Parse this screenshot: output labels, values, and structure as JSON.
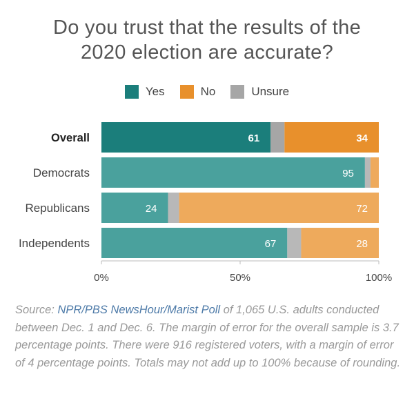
{
  "chart_data": {
    "type": "bar",
    "orientation": "horizontal",
    "stacked": true,
    "title": "Do you trust that the results of the 2020 election are accurate?",
    "title_lines": [
      "Do you trust that the results of the",
      "2020 election are accurate?"
    ],
    "categories": [
      "Overall",
      "Democrats",
      "Republicans",
      "Independents"
    ],
    "series": [
      {
        "name": "Yes",
        "values": [
          61,
          95,
          24,
          67
        ],
        "color": "#1b7e7b"
      },
      {
        "name": "Unsure",
        "values": [
          5,
          2,
          4,
          5
        ],
        "color": "#a6a6a6"
      },
      {
        "name": "No",
        "values": [
          34,
          3,
          72,
          28
        ],
        "color": "#e8902c"
      }
    ],
    "data_labels": {
      "Yes": [
        "61",
        "95",
        "24",
        "67"
      ],
      "No": [
        "34",
        "",
        "72",
        "28"
      ]
    },
    "highlight_category": "Overall",
    "xlim": [
      0,
      100
    ],
    "xticks": [
      0,
      50,
      100
    ],
    "xtick_labels": [
      "0%",
      "50%",
      "100%"
    ],
    "legend": [
      "Yes",
      "No",
      "Unsure"
    ],
    "legend_position": "top-center"
  },
  "colors": {
    "yes": "#1b7e7b",
    "no": "#e8902c",
    "unsure": "#a6a6a6",
    "yes_muted": "#4aa19d",
    "no_muted": "#eeaa5c",
    "unsure_muted": "#b8b8b8"
  },
  "source": {
    "prefix": "Source: ",
    "link": "NPR/PBS NewsHour/Marist Poll",
    "text": " of 1,065 U.S. adults conducted between Dec. 1 and Dec. 6. The margin of error for the overall sample is 3.7 percentage points. There were 916 registered voters, with a margin of error of 4 percentage points. Totals may not add up to 100% because of rounding."
  }
}
